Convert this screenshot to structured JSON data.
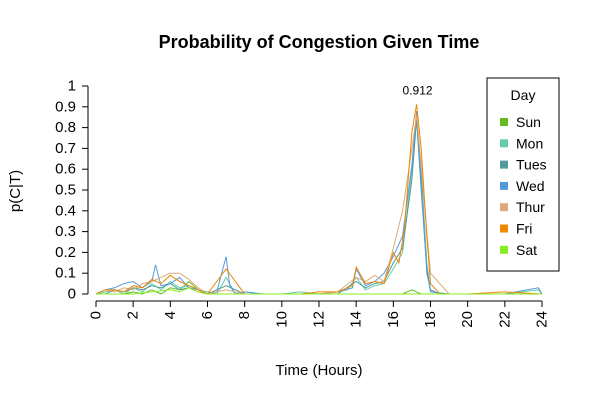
{
  "chart_data": {
    "type": "line",
    "title": "Probability of Congestion Given Time",
    "xlabel": "Time (Hours)",
    "ylabel": "p(C|T)",
    "xlim": [
      0,
      24
    ],
    "ylim": [
      0,
      1
    ],
    "x_ticks": [
      "0",
      "2",
      "4",
      "6",
      "8",
      "10",
      "12",
      "14",
      "16",
      "18",
      "20",
      "22",
      "24"
    ],
    "y_ticks": [
      "0",
      "0.1",
      "0.2",
      "0.3",
      "0.4",
      "0.5",
      "0.6",
      "0.7",
      "0.8",
      "0.9",
      "1"
    ],
    "grid": false,
    "legend": {
      "title": "Day",
      "placement": "top-right"
    },
    "annotation": {
      "text": "0.912",
      "x": 17.25,
      "y": 0.912
    },
    "series": [
      {
        "name": "Sun",
        "color": "#66bb22",
        "x": [
          0,
          1.5,
          2,
          2.5,
          3,
          3.5,
          4,
          4.5,
          5,
          5.5,
          6,
          7,
          8,
          10,
          12,
          13.5,
          14,
          14.5,
          15,
          15.5,
          16,
          16.5,
          17,
          17.25,
          17.5,
          18,
          19,
          20,
          22,
          24
        ],
        "y": [
          0,
          0,
          0.01,
          0,
          0.02,
          0,
          0.03,
          0.02,
          0.06,
          0.02,
          0,
          0,
          0,
          0,
          0,
          0,
          0,
          0,
          0,
          0,
          0,
          0,
          0.02,
          0.01,
          0,
          0,
          0,
          0,
          0,
          0
        ]
      },
      {
        "name": "Mon",
        "color": "#66ccaa",
        "x": [
          0,
          0.5,
          1,
          1.5,
          2,
          2.5,
          3,
          3.5,
          4,
          4.5,
          5,
          5.5,
          6,
          6.5,
          7,
          7.5,
          8,
          9,
          10,
          11,
          12,
          13,
          13.5,
          14,
          14.5,
          15,
          15.5,
          16,
          16.5,
          17,
          17.25,
          17.5,
          17.8,
          18,
          18.5,
          19,
          20,
          22,
          23.8,
          24
        ],
        "y": [
          0,
          0.01,
          0.02,
          0,
          0.03,
          0.01,
          0.05,
          0.02,
          0.06,
          0.03,
          0.04,
          0.02,
          0.01,
          0,
          0.08,
          0,
          0.01,
          0,
          0,
          0.01,
          0,
          0.01,
          0.02,
          0.08,
          0.02,
          0.04,
          0.05,
          0.12,
          0.2,
          0.6,
          0.86,
          0.6,
          0.15,
          0.02,
          0,
          0,
          0,
          0,
          0.02,
          0
        ]
      },
      {
        "name": "Tues",
        "color": "#559999",
        "x": [
          0,
          0.5,
          1,
          1.5,
          2,
          2.5,
          3,
          3.5,
          4,
          4.5,
          5,
          5.5,
          6,
          7,
          8,
          9,
          10,
          11,
          12,
          13,
          14,
          14.5,
          15,
          15.5,
          16,
          16.5,
          17,
          17.25,
          17.5,
          17.8,
          18,
          19,
          20,
          22,
          24
        ],
        "y": [
          0,
          0,
          0.02,
          0.01,
          0.03,
          0.02,
          0.04,
          0.03,
          0.05,
          0.02,
          0.03,
          0.01,
          0,
          0.04,
          0,
          0,
          0,
          0,
          0,
          0,
          0.06,
          0.03,
          0.05,
          0.06,
          0.15,
          0.22,
          0.55,
          0.84,
          0.5,
          0.12,
          0.01,
          0,
          0,
          0,
          0
        ]
      },
      {
        "name": "Wed",
        "color": "#5599dd",
        "x": [
          0,
          0.5,
          1,
          1.5,
          2,
          2.5,
          3,
          3.2,
          3.5,
          4,
          4.5,
          5,
          5.5,
          6,
          6.5,
          7,
          7.2,
          7.5,
          8,
          9,
          10,
          11,
          12,
          13,
          13.8,
          14,
          14.5,
          15,
          15.5,
          16,
          16.5,
          17,
          17.25,
          17.5,
          17.8,
          18,
          18.5,
          19,
          20,
          22,
          23.8,
          24
        ],
        "y": [
          0,
          0.02,
          0.03,
          0.05,
          0.06,
          0.03,
          0.06,
          0.14,
          0.04,
          0.05,
          0.08,
          0.03,
          0.02,
          0,
          0.01,
          0.18,
          0.04,
          0,
          0.01,
          0,
          0,
          0,
          0,
          0.01,
          0.03,
          0.12,
          0.04,
          0.06,
          0.1,
          0.18,
          0.28,
          0.62,
          0.88,
          0.55,
          0.1,
          0.02,
          0,
          0,
          0,
          0,
          0.03,
          0
        ]
      },
      {
        "name": "Thur",
        "color": "#ddaa77",
        "x": [
          0,
          0.5,
          1,
          1.5,
          2,
          2.5,
          3,
          3.5,
          4,
          4.5,
          5,
          5.5,
          6,
          7,
          8,
          10,
          12,
          13,
          14,
          14.5,
          15,
          15.5,
          16,
          16.5,
          17,
          17.25,
          17.5,
          17.8,
          18,
          19,
          20,
          22,
          24
        ],
        "y": [
          0,
          0.02,
          0.01,
          0.03,
          0.02,
          0.05,
          0.06,
          0.08,
          0.1,
          0.1,
          0.07,
          0.03,
          0,
          0.02,
          0,
          0,
          0,
          0.01,
          0.08,
          0.06,
          0.09,
          0.06,
          0.22,
          0.4,
          0.7,
          0.86,
          0.62,
          0.3,
          0.1,
          0,
          0,
          0,
          0
        ]
      },
      {
        "name": "Fri",
        "color": "#ee8800",
        "x": [
          0,
          0.5,
          1,
          1.5,
          2,
          2.5,
          3,
          3.5,
          4,
          4.5,
          5,
          5.5,
          6,
          7,
          8,
          10,
          11,
          12,
          13,
          13.8,
          14,
          14.5,
          15,
          15.5,
          16,
          16.3,
          16.6,
          17,
          17.25,
          17.5,
          17.8,
          18,
          18.5,
          19,
          20,
          22,
          24
        ],
        "y": [
          0,
          0.02,
          0.02,
          0.01,
          0.04,
          0.03,
          0.07,
          0.05,
          0.09,
          0.06,
          0.04,
          0.02,
          0,
          0.12,
          0,
          0,
          0,
          0.01,
          0.01,
          0.04,
          0.13,
          0.05,
          0.06,
          0.05,
          0.2,
          0.15,
          0.32,
          0.78,
          0.912,
          0.7,
          0.28,
          0.05,
          0,
          0,
          0,
          0.01,
          0
        ]
      },
      {
        "name": "Sat",
        "color": "#88ee22",
        "x": [
          0,
          1,
          2,
          3,
          4,
          4.5,
          5,
          5.5,
          6,
          8,
          10,
          12,
          14,
          16,
          17,
          17.5,
          18,
          20,
          22,
          24
        ],
        "y": [
          0,
          0,
          0,
          0.01,
          0.02,
          0.01,
          0.03,
          0.01,
          0,
          0,
          0,
          0,
          0,
          0,
          0,
          0,
          0,
          0,
          0,
          0
        ]
      }
    ]
  }
}
